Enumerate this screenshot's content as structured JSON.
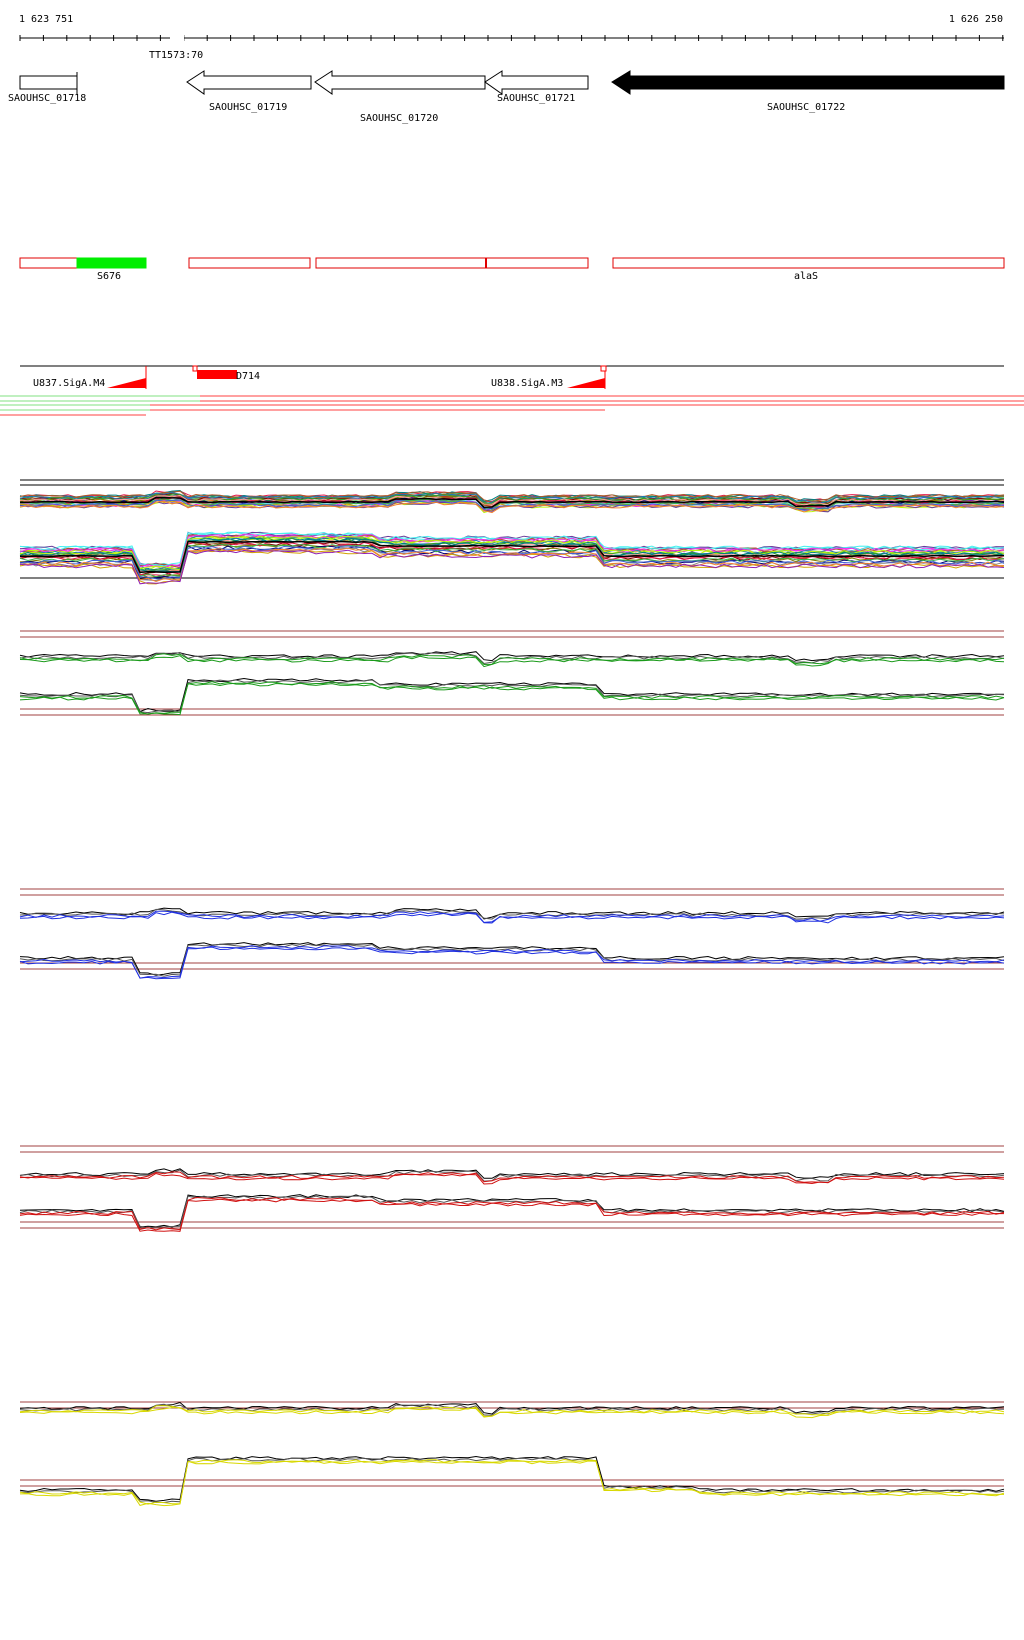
{
  "ruler": {
    "start_label": "1 623 751",
    "end_label": "1 626 250",
    "terminator_label": "TT1573:70"
  },
  "genes": [
    {
      "id": "SAOUHSC_01718",
      "label": "SAOUHSC_01718",
      "strand": "+",
      "filled": false
    },
    {
      "id": "SAOUHSC_01719",
      "label": "SAOUHSC_01719",
      "strand": "-",
      "filled": false
    },
    {
      "id": "SAOUHSC_01720",
      "label": "SAOUHSC_01720",
      "strand": "-",
      "filled": false
    },
    {
      "id": "SAOUHSC_01721",
      "label": "SAOUHSC_01721",
      "strand": "-",
      "filled": false
    },
    {
      "id": "SAOUHSC_01722",
      "label": "SAOUHSC_01722",
      "strand": "-",
      "filled": true
    }
  ],
  "segments": {
    "labels": [
      "S676",
      "alaS"
    ],
    "highlight_color": "#00ee00",
    "outline_color": "#e00000"
  },
  "promoters": {
    "labels": [
      "U837.SigA.M4",
      "U838.SigA.M3",
      "D714"
    ],
    "color": "#ff0000"
  },
  "expression_panels": [
    {
      "name": "all-conditions",
      "accent": "multicolor"
    },
    {
      "name": "green-condition",
      "accent": "#1a9a1a"
    },
    {
      "name": "blue-condition",
      "accent": "#2030e0"
    },
    {
      "name": "red-condition",
      "accent": "#d01010"
    },
    {
      "name": "yellow-condition",
      "accent": "#d8d800"
    }
  ],
  "colors": {
    "threshold_line": "#a04040",
    "forward_arrow_fill": "#ffffff",
    "reverse_arrow_fill": "#000000"
  }
}
